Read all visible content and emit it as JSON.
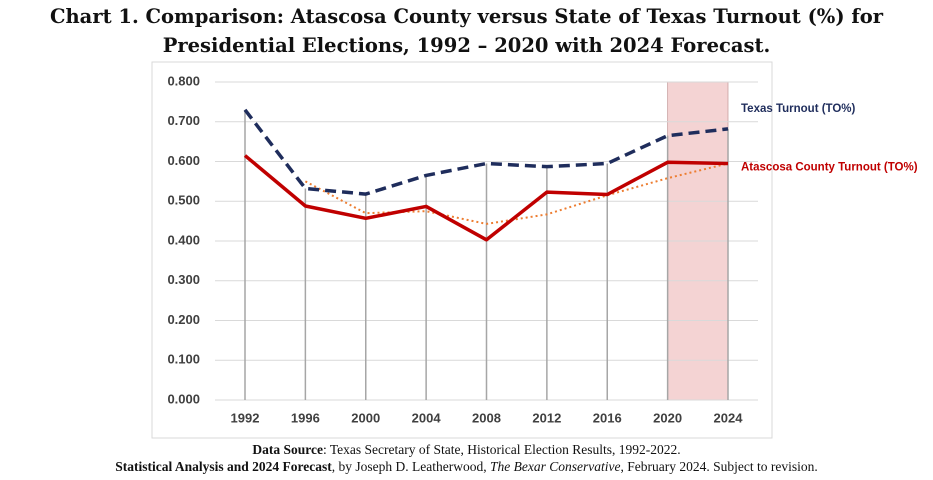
{
  "chart_data": {
    "type": "line",
    "title": "Chart 1. Comparison: Atascosa County versus State of Texas Turnout (%) for Presidential Elections, 1992 – 2020 with 2024 Forecast.",
    "x": [
      1992,
      1996,
      2000,
      2004,
      2008,
      2012,
      2016,
      2020,
      2024
    ],
    "xlim": [
      1992,
      2024
    ],
    "xticks": [
      1992,
      1996,
      2000,
      2004,
      2008,
      2012,
      2016,
      2020,
      2024
    ],
    "ylim": [
      0,
      0.8
    ],
    "yticks": [
      {
        "value": 0,
        "label": "0.000"
      },
      {
        "value": 0.1,
        "label": "0.100"
      },
      {
        "value": 0.2,
        "label": "0.200"
      },
      {
        "value": 0.3,
        "label": "0.300"
      },
      {
        "value": 0.4,
        "label": "0.400"
      },
      {
        "value": 0.5,
        "label": "0.500"
      },
      {
        "value": 0.6,
        "label": "0.600"
      },
      {
        "value": 0.7,
        "label": "0.700"
      },
      {
        "value": 0.8,
        "label": "0.800"
      }
    ],
    "grid": true,
    "series": [
      {
        "name": "Texas Turnout (TO%)",
        "color": "#1f2d5c",
        "dash": true,
        "values": [
          0.73,
          0.532,
          0.518,
          0.565,
          0.595,
          0.587,
          0.595,
          0.665,
          0.682
        ]
      },
      {
        "name": "Atascosa County Turnout (TO%)",
        "color": "#c00000",
        "dash": false,
        "values": [
          0.615,
          0.488,
          0.457,
          0.487,
          0.403,
          0.523,
          0.517,
          0.598,
          0.595
        ]
      }
    ],
    "trend": {
      "color": "#ed7d31",
      "values": [
        null,
        0.55,
        0.47,
        0.475,
        0.443,
        0.467,
        0.515,
        0.558,
        0.595
      ]
    },
    "highlight": {
      "from": 2020,
      "to": 2024,
      "color": "#f4d3d3"
    },
    "source": [
      [
        {
          "text": "Data Source",
          "style": "bold"
        },
        {
          "text": ": Texas Secretary of State, Historical Election Results, 1992-2022.",
          "style": "normal"
        }
      ],
      [
        {
          "text": "Statistical Analysis and 2024 Forecast",
          "style": "bold"
        },
        {
          "text": ", by Joseph D. Leatherwood, ",
          "style": "normal"
        },
        {
          "text": "The Bexar Conservative",
          "style": "italic"
        },
        {
          "text": ", February 2024. Subject to revision.",
          "style": "normal"
        }
      ]
    ]
  }
}
